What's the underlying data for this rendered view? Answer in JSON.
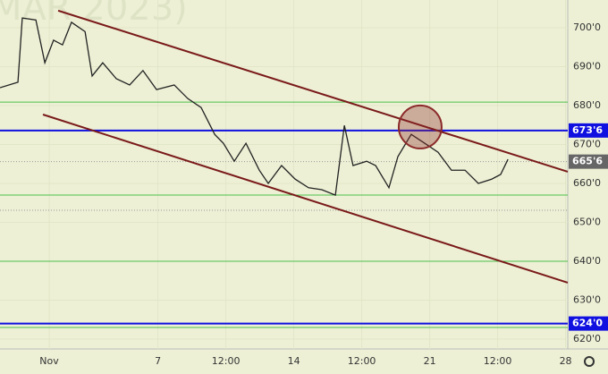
{
  "chart_data": {
    "type": "line",
    "watermark": "MAR 2023)",
    "x": [
      -1.81,
      -1.15,
      -0.99,
      -0.49,
      -0.16,
      0.16,
      0.49,
      0.82,
      1.32,
      1.58,
      1.97,
      2.47,
      2.96,
      3.45,
      3.95,
      4.6,
      5.1,
      5.59,
      6.09,
      6.41,
      6.81,
      7.24,
      7.73,
      8.06,
      8.55,
      9.05,
      9.54,
      10.03,
      10.53,
      10.86,
      11.18,
      11.68,
      12.01,
      12.5,
      12.83,
      13.32,
      13.82,
      14.31,
      14.8,
      15.3,
      15.79,
      16.28,
      16.61,
      16.88
    ],
    "series": [
      {
        "color": "#222222",
        "values": [
          684.6,
          686,
          702.5,
          702,
          691,
          696.8,
          695.6,
          701.4,
          699,
          687.6,
          691,
          686.9,
          685.3,
          689,
          684.1,
          685.3,
          681.8,
          679.5,
          672.6,
          670.3,
          665.7,
          670.3,
          663.4,
          660,
          664.6,
          661.1,
          658.9,
          658.4,
          657,
          674.9,
          664.6,
          665.7,
          664.6,
          658.9,
          666.9,
          672.6,
          670.3,
          668,
          663.4,
          663.4,
          660,
          661.1,
          662.3,
          666.2
        ]
      }
    ],
    "xlim": [
      -1.81,
      19.08
    ],
    "ylim": [
      617.47,
      707.13
    ],
    "xticks": [
      {
        "value": 0,
        "label": "Nov"
      },
      {
        "value": 4,
        "label": "7"
      },
      {
        "value": 6.5,
        "label": "12:00"
      },
      {
        "value": 9,
        "label": "14"
      },
      {
        "value": 11.5,
        "label": "12:00"
      },
      {
        "value": 14,
        "label": "21"
      },
      {
        "value": 16.5,
        "label": "12:00"
      },
      {
        "value": 19,
        "label": "28"
      }
    ],
    "yticks": [
      {
        "value": 620,
        "label": "620'0"
      },
      {
        "value": 630,
        "label": "630'0"
      },
      {
        "value": 640,
        "label": "640'0"
      },
      {
        "value": 650,
        "label": "650'0"
      },
      {
        "value": 660,
        "label": "660'0"
      },
      {
        "value": 670,
        "label": "670'0"
      },
      {
        "value": 680,
        "label": "680'0"
      },
      {
        "value": 690,
        "label": "690'0"
      },
      {
        "value": 700,
        "label": "700'0"
      }
    ],
    "trendlines": [
      {
        "color": "#7a1a1a",
        "x": [
          0.33,
          19.08
        ],
        "y": [
          704.4,
          663
        ]
      },
      {
        "color": "#7a1a1a",
        "x": [
          -0.23,
          19.08
        ],
        "y": [
          677.7,
          634.5
        ]
      }
    ],
    "hlines": [
      {
        "value": 673.6,
        "color": "#1010e0"
      },
      {
        "value": 624,
        "color": "#1010e0"
      },
      {
        "value": 680.9,
        "color": "#4cbf4c"
      },
      {
        "value": 657,
        "color": "#4cbf4c"
      },
      {
        "value": 640,
        "color": "#4cbf4c"
      },
      {
        "value": 623,
        "color": "#4cbf4c"
      },
      {
        "value": 665.6,
        "color": "#999999"
      },
      {
        "value": 653.1,
        "color": "#999999"
      }
    ],
    "circle": {
      "x": 13.65,
      "y": 674.5,
      "color": "#8b2a2a"
    },
    "price_labels": [
      {
        "value": 673.6,
        "label": "673'6",
        "color": "#1010e0"
      },
      {
        "value": 665.6,
        "label": "665'6",
        "color": "#666666"
      },
      {
        "value": 624,
        "label": "624'0",
        "color": "#1010e0"
      }
    ]
  }
}
